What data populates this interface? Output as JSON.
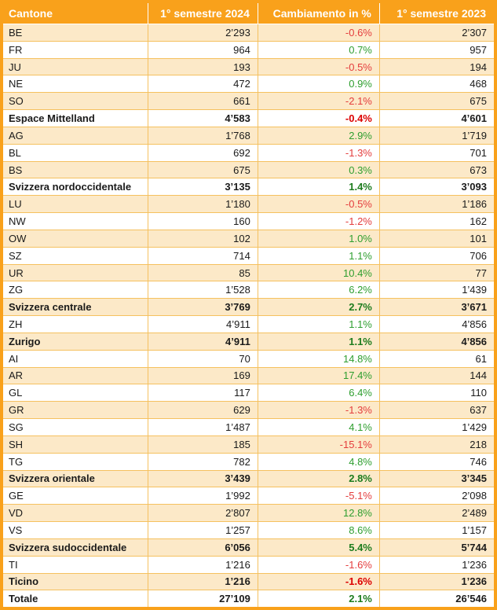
{
  "colors": {
    "header_bg": "#F9A11B",
    "frame": "#F9A11B",
    "row_alternate": "#FCE9C8",
    "grid_line": "#F5C15F",
    "positive": "#2E9E2F",
    "negative": "#E43D3D",
    "positive_bold": "#1D7C1E",
    "negative_bold": "#DC0000",
    "header_text": "#FFFFFF",
    "body_text": "#1A1A1A"
  },
  "table": {
    "columns": [
      "Cantone",
      "1° semestre 2024",
      "Cambiamento in %",
      "1° semestre 2023"
    ],
    "rows": [
      {
        "label": "BE",
        "sem2024": "2’293",
        "change": "-0.6%",
        "sem2023": "2’307",
        "bold": false
      },
      {
        "label": "FR",
        "sem2024": "964",
        "change": "0.7%",
        "sem2023": "957",
        "bold": false
      },
      {
        "label": "JU",
        "sem2024": "193",
        "change": "-0.5%",
        "sem2023": "194",
        "bold": false
      },
      {
        "label": "NE",
        "sem2024": "472",
        "change": "0.9%",
        "sem2023": "468",
        "bold": false
      },
      {
        "label": "SO",
        "sem2024": "661",
        "change": "-2.1%",
        "sem2023": "675",
        "bold": false
      },
      {
        "label": "Espace Mittelland",
        "sem2024": "4’583",
        "change": "-0.4%",
        "sem2023": "4’601",
        "bold": true
      },
      {
        "label": "AG",
        "sem2024": "1’768",
        "change": "2.9%",
        "sem2023": "1’719",
        "bold": false
      },
      {
        "label": "BL",
        "sem2024": "692",
        "change": "-1.3%",
        "sem2023": "701",
        "bold": false
      },
      {
        "label": "BS",
        "sem2024": "675",
        "change": "0.3%",
        "sem2023": "673",
        "bold": false
      },
      {
        "label": "Svizzera nordoccidentale",
        "sem2024": "3’135",
        "change": "1.4%",
        "sem2023": "3’093",
        "bold": true
      },
      {
        "label": "LU",
        "sem2024": "1’180",
        "change": "-0.5%",
        "sem2023": "1’186",
        "bold": false
      },
      {
        "label": "NW",
        "sem2024": "160",
        "change": "-1.2%",
        "sem2023": "162",
        "bold": false
      },
      {
        "label": "OW",
        "sem2024": "102",
        "change": "1.0%",
        "sem2023": "101",
        "bold": false
      },
      {
        "label": "SZ",
        "sem2024": "714",
        "change": "1.1%",
        "sem2023": "706",
        "bold": false
      },
      {
        "label": "UR",
        "sem2024": "85",
        "change": "10.4%",
        "sem2023": "77",
        "bold": false
      },
      {
        "label": "ZG",
        "sem2024": "1’528",
        "change": "6.2%",
        "sem2023": "1’439",
        "bold": false
      },
      {
        "label": "Svizzera centrale",
        "sem2024": "3’769",
        "change": "2.7%",
        "sem2023": "3’671",
        "bold": true
      },
      {
        "label": "ZH",
        "sem2024": "4’911",
        "change": "1.1%",
        "sem2023": "4’856",
        "bold": false
      },
      {
        "label": "Zurigo",
        "sem2024": "4’911",
        "change": "1.1%",
        "sem2023": "4’856",
        "bold": true
      },
      {
        "label": "AI",
        "sem2024": "70",
        "change": "14.8%",
        "sem2023": "61",
        "bold": false
      },
      {
        "label": "AR",
        "sem2024": "169",
        "change": "17.4%",
        "sem2023": "144",
        "bold": false
      },
      {
        "label": "GL",
        "sem2024": "117",
        "change": "6.4%",
        "sem2023": "110",
        "bold": false
      },
      {
        "label": "GR",
        "sem2024": "629",
        "change": "-1.3%",
        "sem2023": "637",
        "bold": false
      },
      {
        "label": "SG",
        "sem2024": "1’487",
        "change": "4.1%",
        "sem2023": "1’429",
        "bold": false
      },
      {
        "label": "SH",
        "sem2024": "185",
        "change": "-15.1%",
        "sem2023": "218",
        "bold": false
      },
      {
        "label": "TG",
        "sem2024": "782",
        "change": "4.8%",
        "sem2023": "746",
        "bold": false
      },
      {
        "label": "Svizzera orientale",
        "sem2024": "3’439",
        "change": "2.8%",
        "sem2023": "3’345",
        "bold": true
      },
      {
        "label": "GE",
        "sem2024": "1’992",
        "change": "-5.1%",
        "sem2023": "2’098",
        "bold": false
      },
      {
        "label": "VD",
        "sem2024": "2’807",
        "change": "12.8%",
        "sem2023": "2’489",
        "bold": false
      },
      {
        "label": "VS",
        "sem2024": "1’257",
        "change": "8.6%",
        "sem2023": "1’157",
        "bold": false
      },
      {
        "label": "Svizzera sudoccidentale",
        "sem2024": "6’056",
        "change": "5.4%",
        "sem2023": "5’744",
        "bold": true
      },
      {
        "label": "TI",
        "sem2024": "1’216",
        "change": "-1.6%",
        "sem2023": "1’236",
        "bold": false
      },
      {
        "label": "Ticino",
        "sem2024": "1’216",
        "change": "-1.6%",
        "sem2023": "1’236",
        "bold": true
      },
      {
        "label": "Totale",
        "sem2024": "27’109",
        "change": "2.1%",
        "sem2023": "26’546",
        "bold": true
      }
    ]
  }
}
